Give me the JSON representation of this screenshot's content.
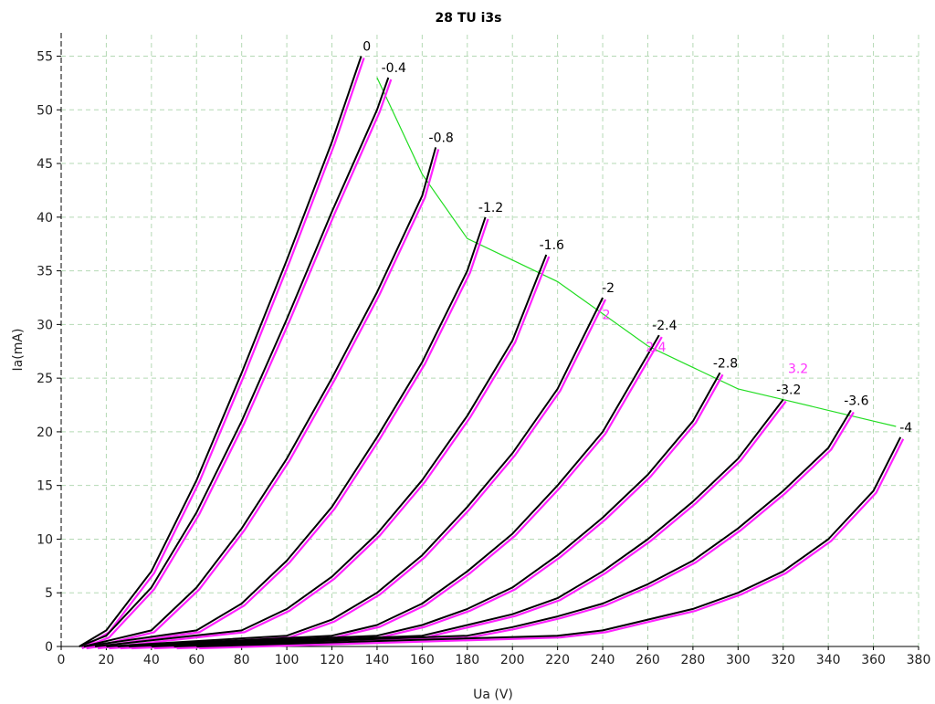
{
  "chart_data": {
    "type": "line",
    "title": "28 TU i3s",
    "xlabel": "Ua (V)",
    "ylabel": "Ia(mA)",
    "xlim": [
      0,
      380
    ],
    "ylim": [
      0,
      57
    ],
    "x_ticks": [
      "0",
      "20",
      "40",
      "60",
      "80",
      "100",
      "120",
      "140",
      "160",
      "180",
      "200",
      "220",
      "240",
      "260",
      "280",
      "300",
      "320",
      "340",
      "360",
      "380"
    ],
    "y_ticks": [
      "0",
      "5",
      "10",
      "15",
      "20",
      "25",
      "30",
      "35",
      "40",
      "45",
      "50",
      "55"
    ],
    "grid": true,
    "colors": {
      "measured": "#000000",
      "model": "#ff22ff",
      "dissipation": "#22dd22",
      "grid": "#b5d9b5"
    },
    "series": [
      {
        "name": "0",
        "x": [
          8,
          20,
          40,
          60,
          80,
          100,
          120,
          133
        ],
        "y": [
          0,
          1.5,
          7,
          15.5,
          25.5,
          36,
          47,
          55
        ]
      },
      {
        "name": "-0.4",
        "x": [
          8,
          20,
          40,
          60,
          80,
          100,
          120,
          140,
          145
        ],
        "y": [
          0,
          1,
          5.5,
          12.5,
          21,
          30.5,
          40.5,
          50,
          53
        ]
      },
      {
        "name": "-0.8",
        "x": [
          10,
          40,
          60,
          80,
          100,
          120,
          140,
          160,
          166
        ],
        "y": [
          0,
          1.5,
          5.5,
          11,
          17.5,
          25,
          33,
          42,
          46.5
        ]
      },
      {
        "name": "-1.2",
        "x": [
          10,
          60,
          80,
          100,
          120,
          140,
          160,
          180,
          188
        ],
        "y": [
          0,
          1.5,
          4,
          8,
          13,
          19.5,
          26.5,
          35,
          40
        ]
      },
      {
        "name": "-1.6",
        "x": [
          15,
          80,
          100,
          120,
          140,
          160,
          180,
          200,
          215
        ],
        "y": [
          0,
          1.5,
          3.5,
          6.5,
          10.5,
          15.5,
          21.5,
          28.5,
          36.5
        ]
      },
      {
        "name": "-2",
        "x": [
          20,
          100,
          120,
          140,
          160,
          180,
          200,
          220,
          240
        ],
        "y": [
          0,
          1,
          2.5,
          5,
          8.5,
          13,
          18,
          24,
          32.5
        ]
      },
      {
        "name": "-2.4",
        "x": [
          25,
          120,
          140,
          160,
          180,
          200,
          220,
          240,
          265
        ],
        "y": [
          0,
          1,
          2,
          4,
          7,
          10.5,
          15,
          20,
          29
        ]
      },
      {
        "name": "-2.8",
        "x": [
          30,
          140,
          160,
          180,
          200,
          220,
          240,
          260,
          280,
          292
        ],
        "y": [
          0,
          1,
          2,
          3.5,
          5.5,
          8.5,
          12,
          16,
          21,
          25.5
        ]
      },
      {
        "name": "-3.2",
        "x": [
          40,
          160,
          180,
          200,
          220,
          240,
          260,
          280,
          300,
          320
        ],
        "y": [
          0,
          1,
          2,
          3,
          4.5,
          7,
          10,
          13.5,
          17.5,
          23
        ]
      },
      {
        "name": "-3.6",
        "x": [
          50,
          180,
          200,
          220,
          240,
          260,
          280,
          300,
          320,
          340,
          350
        ],
        "y": [
          0,
          1,
          1.8,
          2.8,
          4,
          5.8,
          8,
          11,
          14.5,
          18.5,
          22
        ]
      },
      {
        "name": "-4",
        "x": [
          60,
          220,
          240,
          260,
          280,
          300,
          320,
          340,
          360,
          372
        ],
        "y": [
          0,
          1,
          1.5,
          2.5,
          3.5,
          5,
          7,
          10,
          14.5,
          19.5
        ]
      }
    ],
    "dissipation_curve": {
      "x": [
        140,
        160,
        180,
        200,
        220,
        240,
        260,
        280,
        300,
        320,
        340,
        360,
        370
      ],
      "y": [
        53,
        44,
        38,
        36,
        34,
        31,
        28,
        26,
        24,
        23,
        22,
        21,
        20.5
      ]
    },
    "curve_labels": [
      "0",
      "-0.4",
      "-0.8",
      "-1.2",
      "-1.6",
      "-2",
      "-2.4",
      "-2.8",
      "-3.2",
      "-3.6",
      "-4"
    ],
    "model_labels": [
      "2",
      "2.4",
      "3.2"
    ]
  }
}
